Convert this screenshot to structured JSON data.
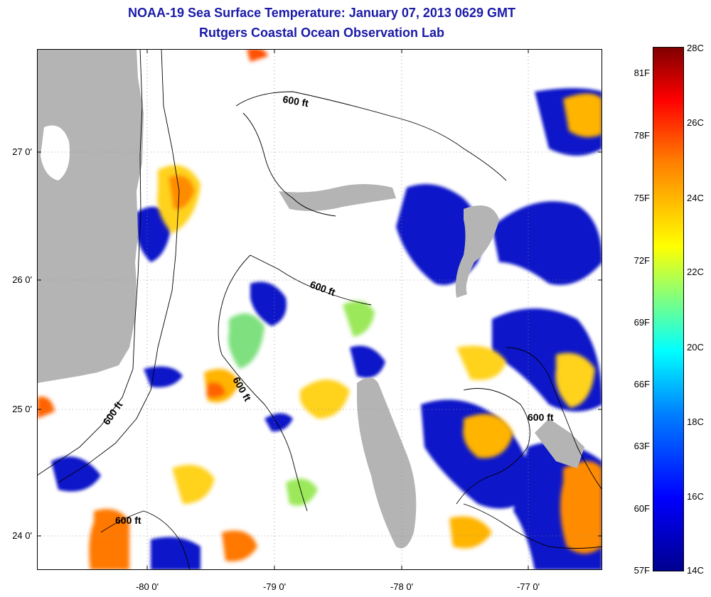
{
  "header": {
    "title": "NOAA-19 Sea Surface Temperature:  January 07, 2013 0629 GMT",
    "subtitle": "Rutgers Coastal Ocean Observation Lab"
  },
  "map": {
    "lat_ticks": [
      "27 0'",
      "26 0'",
      "25 0'",
      "24 0'"
    ],
    "lon_ticks": [
      "-80 0'",
      "-79 0'",
      "-78 0'",
      "-77 0'"
    ],
    "contour_labels": [
      "600 ft",
      "600 ft",
      "600 ft",
      "600 ft",
      "600 ft",
      "600 ft"
    ],
    "colors": {
      "land": "#b4b4b4",
      "cloud": "#ffffff",
      "contour": "#000000",
      "grid": "#8a8a8a",
      "title": "#1a1aa8"
    }
  },
  "colorbar": {
    "fahrenheit_labels": [
      "81F",
      "78F",
      "75F",
      "72F",
      "69F",
      "66F",
      "63F",
      "60F",
      "57F"
    ],
    "celsius_labels": [
      "28C",
      "26C",
      "24C",
      "22C",
      "20C",
      "18C",
      "16C",
      "14C"
    ],
    "colormap": [
      "#00008f",
      "#0000ff",
      "#0080ff",
      "#00ffff",
      "#80ff80",
      "#ffff00",
      "#ff8000",
      "#ff0000",
      "#800000"
    ]
  }
}
